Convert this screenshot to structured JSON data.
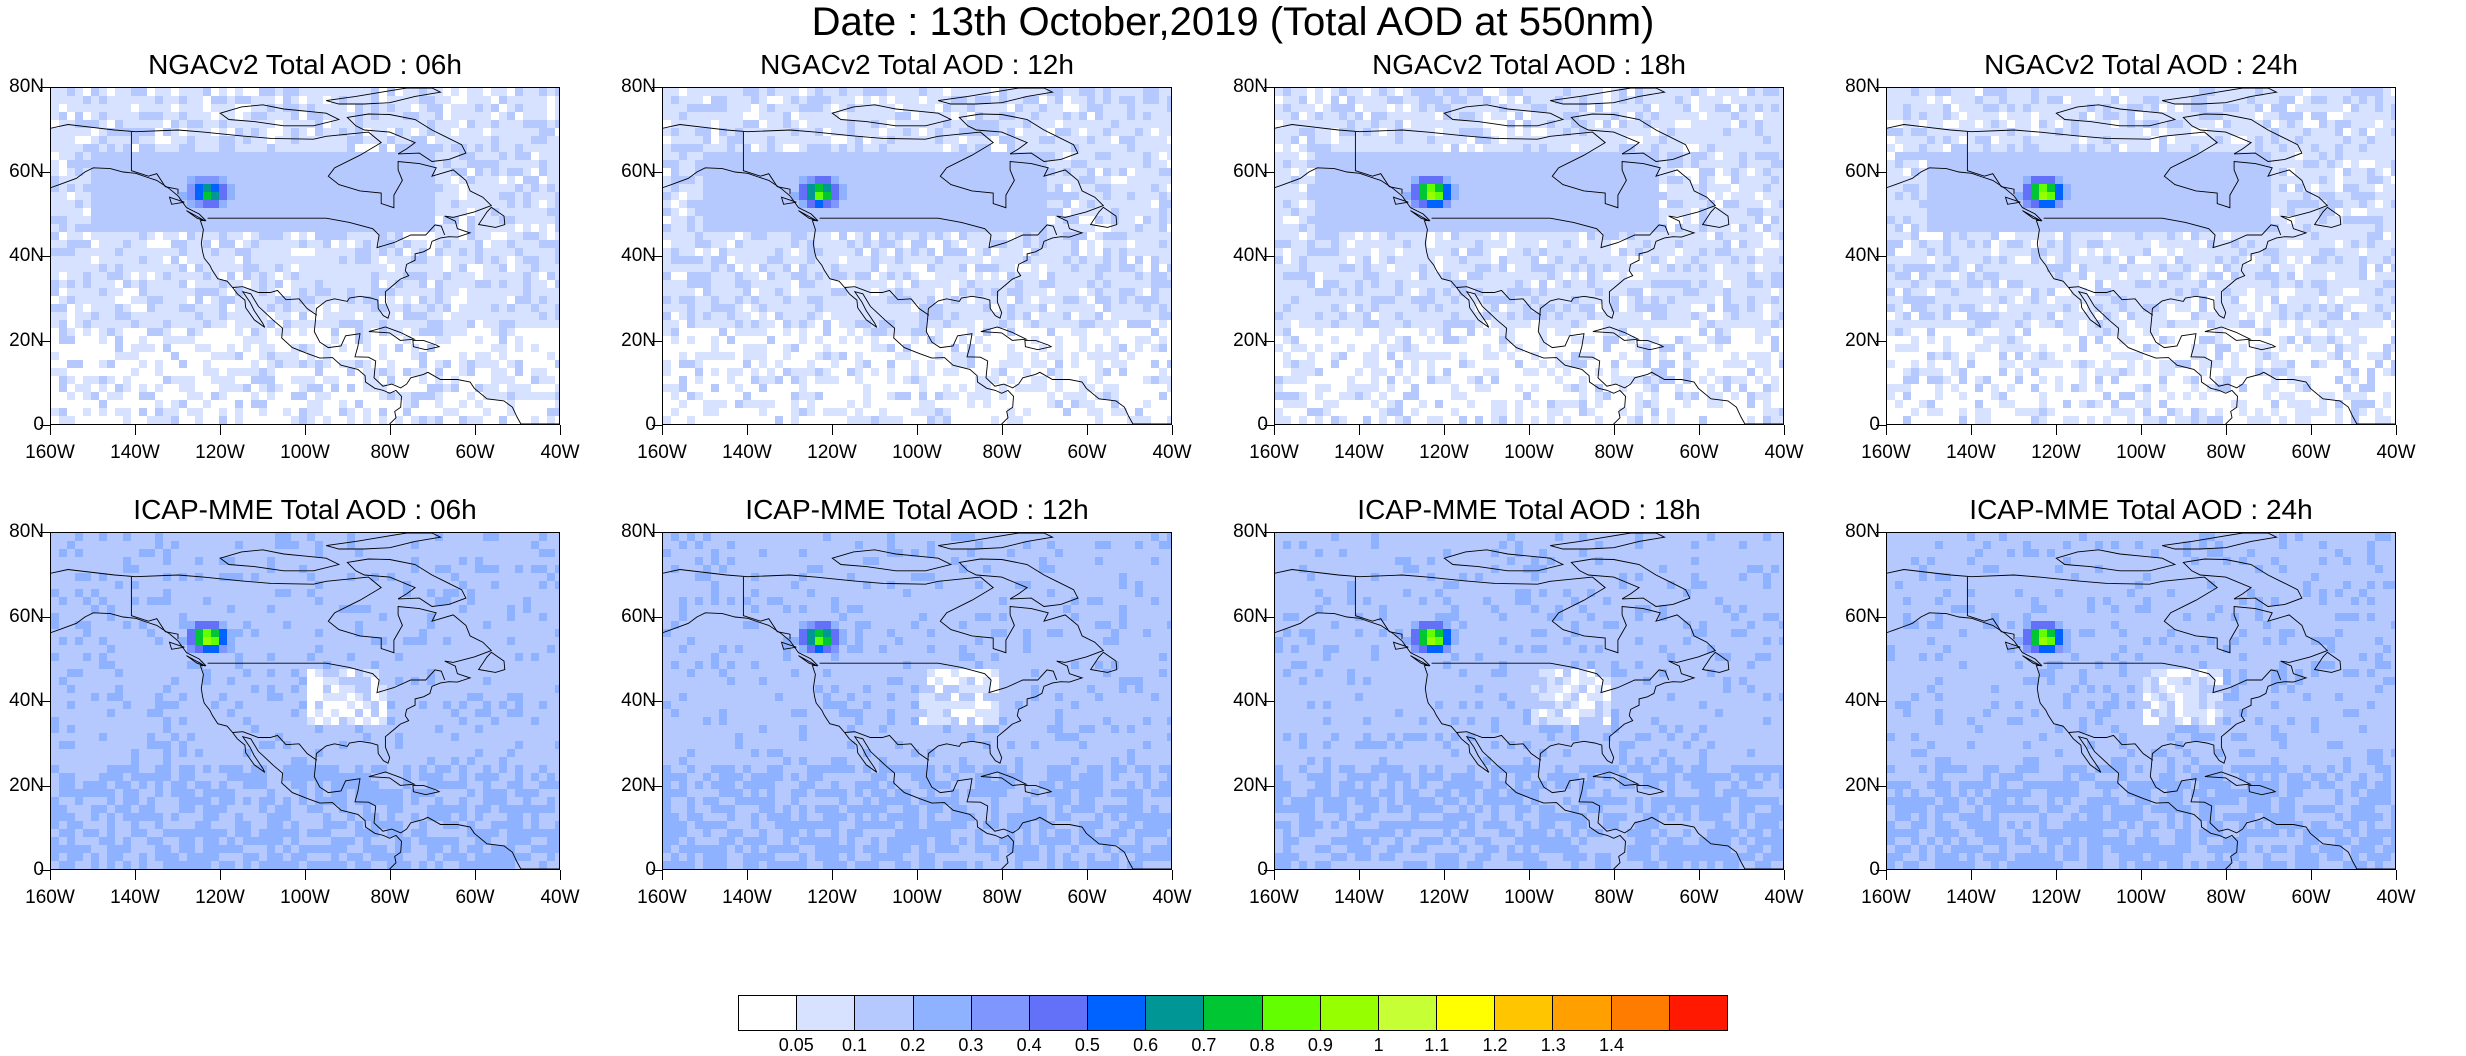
{
  "title": "Date : 13th October,2019 (Total AOD at 550nm)",
  "panels": [
    {
      "title": "NGACv2 Total AOD : 06h",
      "model": "NGACv2",
      "hour": "06h",
      "plume_level": 0.6,
      "dust_level": 0.3
    },
    {
      "title": "NGACv2 Total AOD : 12h",
      "model": "NGACv2",
      "hour": "12h",
      "plume_level": 0.8,
      "dust_level": 0.3
    },
    {
      "title": "NGACv2 Total AOD : 18h",
      "model": "NGACv2",
      "hour": "18h",
      "plume_level": 0.9,
      "dust_level": 0.35
    },
    {
      "title": "NGACv2 Total AOD : 24h",
      "model": "NGACv2",
      "hour": "24h",
      "plume_level": 0.9,
      "dust_level": 0.3
    },
    {
      "title": "ICAP-MME Total AOD : 06h",
      "model": "ICAP-MME",
      "hour": "06h",
      "plume_level": 0.9,
      "dust_level": 0.2
    },
    {
      "title": "ICAP-MME Total AOD : 12h",
      "model": "ICAP-MME",
      "hour": "12h",
      "plume_level": 0.8,
      "dust_level": 0.2
    },
    {
      "title": "ICAP-MME Total AOD : 18h",
      "model": "ICAP-MME",
      "hour": "18h",
      "plume_level": 0.9,
      "dust_level": 0.2
    },
    {
      "title": "ICAP-MME Total AOD : 24h",
      "model": "ICAP-MME",
      "hour": "24h",
      "plume_level": 0.9,
      "dust_level": 0.2
    }
  ],
  "y_ticks": [
    "80N",
    "60N",
    "40N",
    "20N",
    "0"
  ],
  "x_ticks": [
    "160W",
    "140W",
    "120W",
    "100W",
    "80W",
    "60W",
    "40W"
  ],
  "lon_range": [
    -160,
    -40
  ],
  "lat_range": [
    0,
    80
  ],
  "colorbar": {
    "colors": [
      "#ffffff",
      "#d6e2ff",
      "#b5c9ff",
      "#8eb2ff",
      "#7f96ff",
      "#6370f8",
      "#0063ff",
      "#009696",
      "#00c633",
      "#63ff00",
      "#96ff00",
      "#c6ff33",
      "#ffff00",
      "#ffc600",
      "#ffa000",
      "#ff7c00",
      "#ff1900"
    ],
    "labels": [
      "0.05",
      "0.1",
      "0.2",
      "0.3",
      "0.4",
      "0.5",
      "0.6",
      "0.7",
      "0.8",
      "0.9",
      "1",
      "1.1",
      "1.2",
      "1.3",
      "1.4"
    ]
  },
  "map_colors": {
    "background_low": "#d6e2ff",
    "background_mid": "#b5c9ff",
    "coast": "#000000"
  }
}
